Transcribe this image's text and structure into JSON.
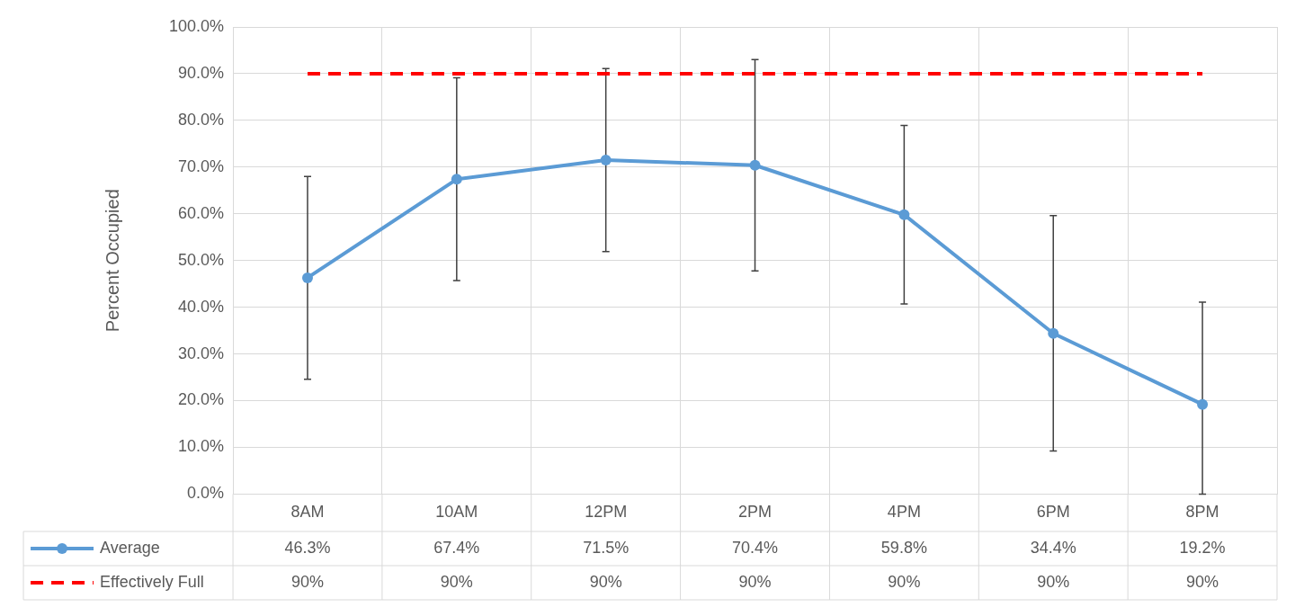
{
  "chart_data": {
    "type": "line",
    "ylabel": "Percent Occupied",
    "categories": [
      "8AM",
      "10AM",
      "12PM",
      "2PM",
      "4PM",
      "6PM",
      "8PM"
    ],
    "series": [
      {
        "name": "Average",
        "color": "#5b9bd5",
        "marker": "circle",
        "line_style": "solid",
        "values": [
          46.3,
          67.4,
          71.5,
          70.4,
          59.8,
          34.4,
          19.2
        ],
        "errors": [
          21.7,
          21.7,
          19.6,
          22.6,
          19.1,
          25.2,
          [
            0,
            41.1
          ]
        ],
        "value_labels": [
          "46.3%",
          "67.4%",
          "71.5%",
          "70.4%",
          "59.8%",
          "34.4%",
          "19.2%"
        ]
      },
      {
        "name": "Effectively Full",
        "color": "#ff0000",
        "marker": "none",
        "line_style": "dashed",
        "values": [
          90,
          90,
          90,
          90,
          90,
          90,
          90
        ],
        "value_labels": [
          "90%",
          "90%",
          "90%",
          "90%",
          "90%",
          "90%",
          "90%"
        ]
      }
    ],
    "ylim": [
      0,
      100
    ],
    "yticks": [
      {
        "value": 0,
        "label": "0.0%"
      },
      {
        "value": 10,
        "label": "10.0%"
      },
      {
        "value": 20,
        "label": "20.0%"
      },
      {
        "value": 30,
        "label": "30.0%"
      },
      {
        "value": 40,
        "label": "40.0%"
      },
      {
        "value": 50,
        "label": "50.0%"
      },
      {
        "value": 60,
        "label": "60.0%"
      },
      {
        "value": 70,
        "label": "70.0%"
      },
      {
        "value": 80,
        "label": "80.0%"
      },
      {
        "value": 90,
        "label": "90.0%"
      },
      {
        "value": 100,
        "label": "100.0%"
      }
    ],
    "grid": true,
    "legend": "bottom"
  }
}
